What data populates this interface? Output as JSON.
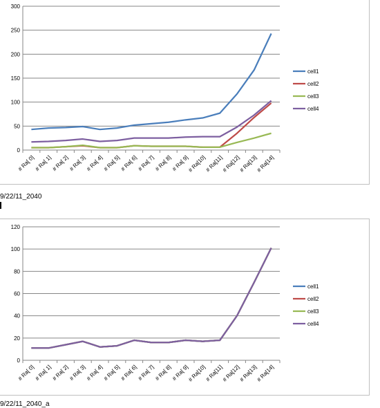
{
  "chart_data": [
    {
      "type": "line",
      "categories": [
        "# Ra[ 0]",
        "# Ra[ 1]",
        "# Ra[ 2]",
        "# Ra[ 3]",
        "# Ra[ 4]",
        "# Ra[ 5]",
        "# Ra[ 6]",
        "# Ra[ 7]",
        "# Ra[ 8]",
        "# Ra[ 9]",
        "# Ra[10]",
        "# Ra[11]",
        "# Ra[12]",
        "# Ra[13]",
        "# Ra[14]"
      ],
      "ylim": [
        0,
        300
      ],
      "yticks": [
        0,
        50,
        100,
        150,
        200,
        250,
        300
      ],
      "grid": true,
      "legend_position": "right",
      "series": [
        {
          "name": "cell1",
          "color": "#4a7ebb",
          "values": [
            43,
            46,
            47,
            49,
            43,
            46,
            52,
            55,
            58,
            63,
            67,
            77,
            117,
            167,
            243
          ]
        },
        {
          "name": "cell2",
          "color": "#be4b48",
          "values": [
            5,
            5,
            7,
            9,
            5,
            5,
            9,
            8,
            8,
            8,
            6,
            6,
            35,
            68,
            98
          ]
        },
        {
          "name": "cell3",
          "color": "#98b954",
          "values": [
            5,
            5,
            7,
            10,
            5,
            5,
            9,
            8,
            8,
            8,
            6,
            6,
            16,
            25,
            35
          ]
        },
        {
          "name": "cell4",
          "color": "#7d5fa0",
          "values": [
            17,
            18,
            20,
            23,
            18,
            20,
            25,
            25,
            25,
            27,
            28,
            28,
            48,
            73,
            103
          ]
        }
      ]
    },
    {
      "type": "line",
      "categories": [
        "# Ra[ 0]",
        "# Ra[ 1]",
        "# Ra[ 2]",
        "# Ra[ 3]",
        "# Ra[ 4]",
        "# Ra[ 5]",
        "# Ra[ 6]",
        "# Ra[ 7]",
        "# Ra[ 8]",
        "# Ra[ 9]",
        "# Ra[10]",
        "# Ra[11]",
        "# Ra[12]",
        "# Ra[13]",
        "# Ra[14]"
      ],
      "ylim": [
        0,
        120
      ],
      "yticks": [
        0,
        20,
        40,
        60,
        80,
        100,
        120
      ],
      "grid": true,
      "legend_position": "right",
      "series": [
        {
          "name": "cell1",
          "color": "#4a7ebb",
          "values": [
            11,
            11,
            14,
            17,
            12,
            13,
            18,
            16,
            16,
            18,
            17,
            18,
            40,
            70,
            101
          ]
        },
        {
          "name": "cell2",
          "color": "#be4b48",
          "values": [
            11,
            11,
            14,
            17,
            12,
            13,
            18,
            16,
            16,
            18,
            17,
            18,
            40,
            70,
            101
          ]
        },
        {
          "name": "cell3",
          "color": "#98b954",
          "values": [
            11,
            11,
            14,
            17,
            12,
            13,
            18,
            16,
            16,
            18,
            17,
            18,
            40,
            70,
            101
          ]
        },
        {
          "name": "cell4",
          "color": "#7d5fa0",
          "values": [
            11,
            11,
            14,
            17,
            12,
            13,
            18,
            16,
            16,
            18,
            17,
            18,
            40,
            70,
            101
          ]
        }
      ]
    }
  ],
  "captions": {
    "first": "9/22/11_2040",
    "second": "9/22/11_2040_a"
  }
}
